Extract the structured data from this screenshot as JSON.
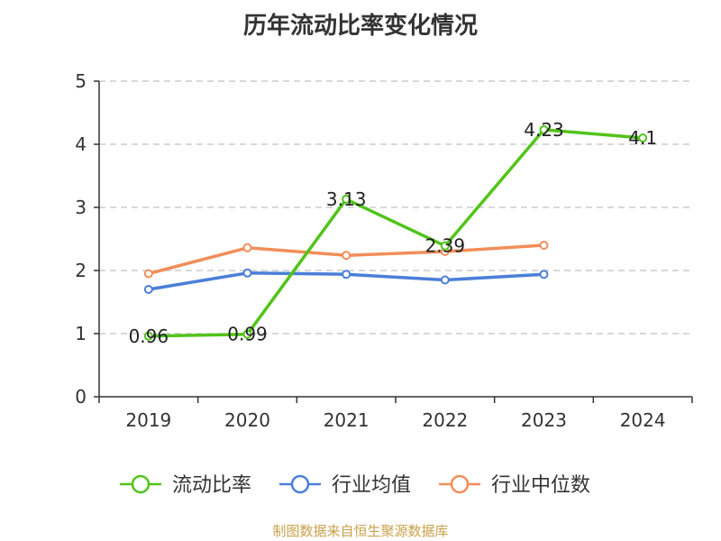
{
  "title": "历年流动比率变化情况",
  "footer": "制图数据来自恒生聚源数据库",
  "chart_data": {
    "type": "line",
    "title": "历年流动比率变化情况",
    "xlabel": "",
    "ylabel": "",
    "categories": [
      "2019",
      "2020",
      "2021",
      "2022",
      "2023",
      "2024"
    ],
    "ylim": [
      0,
      5
    ],
    "yticks": [
      0,
      1,
      2,
      3,
      4,
      5
    ],
    "grid": true,
    "legend_position": "bottom",
    "series": [
      {
        "name": "流动比率",
        "color": "#52c41a",
        "values": [
          0.96,
          0.99,
          3.13,
          2.39,
          4.23,
          4.1
        ],
        "labels": [
          "0.96",
          "0.99",
          "3.13",
          "2.39",
          "4.23",
          "4.1"
        ]
      },
      {
        "name": "行业均值",
        "color": "#4a7fd9",
        "values": [
          1.7,
          1.96,
          1.94,
          1.85,
          1.94,
          null
        ]
      },
      {
        "name": "行业中位数",
        "color": "#f28e5a",
        "values": [
          1.95,
          2.36,
          2.24,
          2.3,
          2.4,
          null
        ]
      }
    ]
  }
}
